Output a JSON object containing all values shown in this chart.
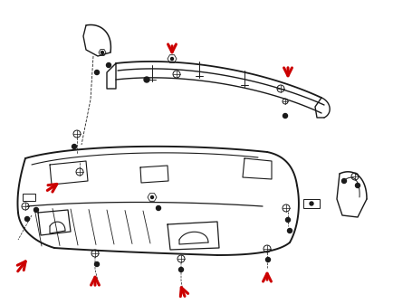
{
  "bg_color": "#ffffff",
  "line_color": "#1a1a1a",
  "arrow_color": "#cc0000",
  "fig_width": 4.34,
  "fig_height": 3.36,
  "dpi": 100
}
